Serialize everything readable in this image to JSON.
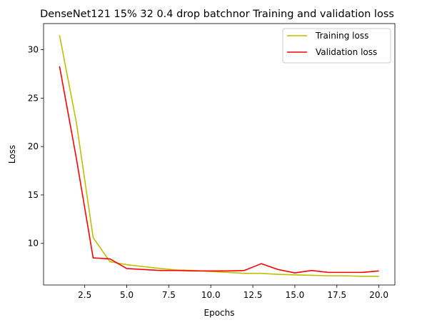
{
  "chart_data": {
    "type": "line",
    "title": "DenseNet121 15% 32 0.4 drop batchnor Training and validation loss",
    "xlabel": "Epochs",
    "ylabel": "Loss",
    "xlim": [
      0.05,
      20.95
    ],
    "ylim": [
      5.7,
      32.7
    ],
    "xticks": [
      2.5,
      5.0,
      7.5,
      10.0,
      12.5,
      15.0,
      17.5,
      20.0
    ],
    "xtick_labels": [
      "2.5",
      "5.0",
      "7.5",
      "10.0",
      "12.5",
      "15.0",
      "17.5",
      "20.0"
    ],
    "yticks": [
      10,
      15,
      20,
      25,
      30
    ],
    "ytick_labels": [
      "10",
      "15",
      "20",
      "25",
      "30"
    ],
    "grid": false,
    "legend_position": "top-right",
    "x": [
      1,
      2,
      3,
      4,
      5,
      6,
      7,
      8,
      9,
      10,
      11,
      12,
      13,
      14,
      15,
      16,
      17,
      18,
      19,
      20
    ],
    "series": [
      {
        "name": "Training loss",
        "color": "#bfbf00",
        "values": [
          31.5,
          22.5,
          10.6,
          8.1,
          7.8,
          7.6,
          7.4,
          7.25,
          7.2,
          7.1,
          7.0,
          6.9,
          6.9,
          6.8,
          6.75,
          6.7,
          6.65,
          6.65,
          6.6,
          6.6
        ]
      },
      {
        "name": "Validation loss",
        "color": "#ff0000",
        "values": [
          28.3,
          18.8,
          8.5,
          8.4,
          7.4,
          7.3,
          7.2,
          7.2,
          7.15,
          7.15,
          7.15,
          7.2,
          7.9,
          7.3,
          6.95,
          7.2,
          7.0,
          7.0,
          7.0,
          7.15
        ]
      }
    ]
  }
}
